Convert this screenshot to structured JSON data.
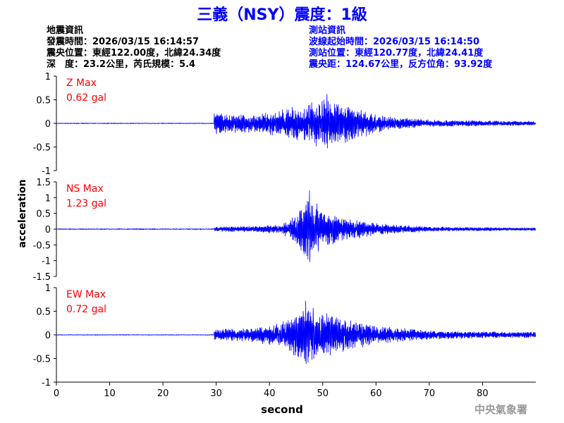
{
  "header": {
    "title": "三義（NSY）震度：1級",
    "event_heading": "地震資訊",
    "origin_time": "發震時間：2026/03/15 16:14:57",
    "epicenter": "震央位置：東經122.00度，北緯24.34度",
    "depth_magnitude": "深　度：23.2公里，芮氏規模：5.4",
    "station_heading": "測站資訊",
    "wave_start": "波線起始時間：2026/03/15 16:14:50",
    "station_location": "測站位置：東經120.77度，北緯24.41度",
    "epicentral_distance": "震央距：124.67公里，反方位角：93.92度"
  },
  "footer": {
    "agency": "中央氣象署"
  },
  "colors": {
    "title": "#0000ff",
    "station_info": "#0000ff",
    "event_info": "#000000",
    "trace": "#0000ff",
    "max_label": "#ff0000",
    "axis": "#000000",
    "watermark": "#999999"
  },
  "chart_data": {
    "type": "line",
    "xlabel": "second",
    "ylabel": "acceleration",
    "xlim": [
      0,
      90
    ],
    "xticks": [
      "0",
      "10",
      "20",
      "30",
      "40",
      "50",
      "60",
      "70",
      "80"
    ],
    "panels": [
      {
        "name": "Z",
        "max_label": "Z Max",
        "max_value": "0.62 gal",
        "ylim": [
          -1,
          1
        ],
        "yticks": [
          "1",
          "0.5",
          "0",
          "-0.5",
          "-1"
        ],
        "noise_level": 0.005,
        "p_arrival": 29.6,
        "pre_amp": 0.25,
        "peak_time": 50.8,
        "peak_amp": 0.62,
        "envelope": [
          [
            29.6,
            0.25
          ],
          [
            34,
            0.2
          ],
          [
            38,
            0.2
          ],
          [
            42,
            0.3
          ],
          [
            46,
            0.4
          ],
          [
            50,
            0.55
          ],
          [
            54,
            0.45
          ],
          [
            58,
            0.3
          ],
          [
            62,
            0.15
          ],
          [
            70,
            0.08
          ],
          [
            80,
            0.06
          ],
          [
            90,
            0.05
          ]
        ]
      },
      {
        "name": "NS",
        "max_label": "NS Max",
        "max_value": "1.23 gal",
        "ylim": [
          -1.5,
          1.5
        ],
        "yticks": [
          "1.5",
          "1",
          "0.5",
          "0",
          "-0.5",
          "-1",
          "-1.5"
        ],
        "noise_level": 0.01,
        "p_arrival": 29.6,
        "pre_amp": 0.08,
        "peak_time": 47.5,
        "peak_amp": 1.23,
        "envelope": [
          [
            29.6,
            0.08
          ],
          [
            36,
            0.1
          ],
          [
            42,
            0.15
          ],
          [
            44,
            0.35
          ],
          [
            46,
            0.8
          ],
          [
            48,
            1.1
          ],
          [
            50,
            0.6
          ],
          [
            54,
            0.4
          ],
          [
            60,
            0.2
          ],
          [
            70,
            0.08
          ],
          [
            80,
            0.06
          ],
          [
            90,
            0.05
          ]
        ]
      },
      {
        "name": "EW",
        "max_label": "EW Max",
        "max_value": "0.72 gal",
        "ylim": [
          -1,
          1
        ],
        "yticks": [
          "1",
          "0.5",
          "0",
          "-0.5",
          "-1"
        ],
        "noise_level": 0.005,
        "p_arrival": 29.6,
        "pre_amp": 0.12,
        "peak_time": 46.8,
        "peak_amp": 0.72,
        "envelope": [
          [
            29.6,
            0.12
          ],
          [
            36,
            0.15
          ],
          [
            42,
            0.25
          ],
          [
            45,
            0.5
          ],
          [
            47,
            0.65
          ],
          [
            50,
            0.5
          ],
          [
            55,
            0.35
          ],
          [
            60,
            0.2
          ],
          [
            70,
            0.1
          ],
          [
            80,
            0.08
          ],
          [
            90,
            0.06
          ]
        ]
      }
    ]
  }
}
